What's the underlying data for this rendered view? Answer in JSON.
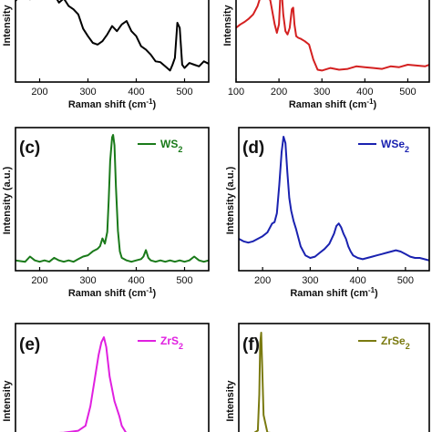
{
  "chart_data": [
    {
      "type": "line",
      "panel_label": "",
      "legend": "",
      "xlabel": "Raman shift (cm⁻¹)",
      "ylabel": "Intensity",
      "xlim": [
        150,
        550
      ],
      "xticks": [
        200,
        300,
        400,
        500
      ],
      "color": "#000000",
      "series": [
        {
          "x": [
            150,
            160,
            170,
            180,
            190,
            200,
            210,
            215,
            220,
            230,
            240,
            250,
            260,
            270,
            280,
            290,
            300,
            310,
            320,
            330,
            340,
            350,
            360,
            370,
            380,
            390,
            400,
            410,
            420,
            430,
            440,
            450,
            460,
            470,
            475,
            480,
            485,
            490,
            495,
            500,
            510,
            520,
            530,
            540,
            550
          ],
          "y": [
            0.88,
            0.95,
            1.02,
            0.9,
            0.97,
            1.05,
            0.98,
            1.01,
            0.92,
            0.96,
            0.86,
            0.91,
            0.82,
            0.78,
            0.72,
            0.55,
            0.46,
            0.38,
            0.36,
            0.4,
            0.48,
            0.58,
            0.52,
            0.6,
            0.64,
            0.52,
            0.46,
            0.34,
            0.3,
            0.24,
            0.16,
            0.15,
            0.1,
            0.05,
            0.12,
            0.2,
            0.62,
            0.56,
            0.12,
            0.08,
            0.14,
            0.12,
            0.1,
            0.16,
            0.13
          ]
        }
      ]
    },
    {
      "type": "line",
      "panel_label": "",
      "legend": "",
      "xlabel": "Raman shift (cm⁻¹)",
      "ylabel": "Intensity",
      "xlim": [
        100,
        550
      ],
      "xticks": [
        100,
        200,
        300,
        400,
        500
      ],
      "color": "#d42020",
      "series": [
        {
          "x": [
            100,
            110,
            120,
            130,
            140,
            150,
            160,
            170,
            180,
            190,
            195,
            200,
            203,
            206,
            210,
            215,
            220,
            225,
            230,
            233,
            236,
            240,
            245,
            250,
            260,
            270,
            280,
            290,
            300,
            320,
            340,
            360,
            380,
            400,
            420,
            440,
            460,
            480,
            500,
            520,
            540,
            550
          ],
          "y": [
            0.56,
            0.6,
            0.63,
            0.67,
            0.72,
            0.82,
            0.98,
            1.02,
            0.88,
            0.6,
            0.5,
            0.6,
            0.92,
            1.02,
            0.72,
            0.52,
            0.48,
            0.56,
            0.78,
            0.8,
            0.6,
            0.46,
            0.44,
            0.43,
            0.4,
            0.36,
            0.18,
            0.06,
            0.05,
            0.08,
            0.06,
            0.07,
            0.1,
            0.09,
            0.08,
            0.07,
            0.1,
            0.09,
            0.12,
            0.11,
            0.1,
            0.12
          ]
        }
      ]
    },
    {
      "type": "line",
      "panel_label": "(c)",
      "legend": "WS₂",
      "xlabel": "Raman shift (cm⁻¹)",
      "ylabel": "Intensity (a.u.)",
      "xlim": [
        150,
        550
      ],
      "xticks": [
        200,
        300,
        400,
        500
      ],
      "color": "#1a7a1a",
      "series": [
        {
          "x": [
            150,
            170,
            180,
            190,
            200,
            210,
            220,
            230,
            240,
            250,
            260,
            270,
            280,
            290,
            300,
            310,
            320,
            325,
            330,
            335,
            340,
            343,
            346,
            350,
            352,
            355,
            358,
            362,
            366,
            370,
            380,
            390,
            400,
            410,
            415,
            420,
            425,
            430,
            440,
            450,
            460,
            470,
            480,
            490,
            500,
            510,
            520,
            530,
            540,
            550
          ],
          "y": [
            0.03,
            0.02,
            0.06,
            0.03,
            0.02,
            0.03,
            0.02,
            0.05,
            0.03,
            0.02,
            0.03,
            0.02,
            0.04,
            0.06,
            0.07,
            0.1,
            0.12,
            0.14,
            0.2,
            0.16,
            0.25,
            0.5,
            0.8,
            0.98,
            1.0,
            0.92,
            0.6,
            0.26,
            0.1,
            0.05,
            0.03,
            0.02,
            0.03,
            0.04,
            0.06,
            0.11,
            0.05,
            0.03,
            0.02,
            0.03,
            0.02,
            0.03,
            0.02,
            0.03,
            0.02,
            0.03,
            0.06,
            0.03,
            0.02,
            0.03
          ]
        }
      ]
    },
    {
      "type": "line",
      "panel_label": "(d)",
      "legend": "WSe₂",
      "xlabel": "Raman shift (cm⁻¹)",
      "ylabel": "Intensity (a.u.)",
      "xlim": [
        150,
        550
      ],
      "xticks": [
        200,
        300,
        400,
        500
      ],
      "color": "#1a22b0",
      "series": [
        {
          "x": [
            150,
            160,
            170,
            180,
            190,
            200,
            210,
            220,
            225,
            230,
            235,
            240,
            244,
            248,
            252,
            256,
            260,
            265,
            270,
            280,
            290,
            300,
            310,
            320,
            330,
            340,
            350,
            355,
            360,
            365,
            370,
            375,
            380,
            385,
            390,
            400,
            410,
            420,
            430,
            440,
            450,
            460,
            470,
            480,
            490,
            500,
            510,
            520,
            530,
            540,
            550
          ],
          "y": [
            0.2,
            0.18,
            0.17,
            0.18,
            0.2,
            0.22,
            0.25,
            0.32,
            0.33,
            0.4,
            0.62,
            0.88,
            1.0,
            0.95,
            0.72,
            0.52,
            0.42,
            0.34,
            0.28,
            0.14,
            0.07,
            0.05,
            0.06,
            0.09,
            0.12,
            0.16,
            0.24,
            0.3,
            0.32,
            0.29,
            0.24,
            0.2,
            0.14,
            0.1,
            0.07,
            0.05,
            0.04,
            0.05,
            0.06,
            0.07,
            0.08,
            0.09,
            0.1,
            0.11,
            0.1,
            0.08,
            0.06,
            0.05,
            0.05,
            0.04,
            0.03
          ]
        }
      ]
    },
    {
      "type": "line",
      "panel_label": "(e)",
      "legend": "ZrS₂",
      "ylabel": "Intensity",
      "xlim": [
        150,
        550
      ],
      "color": "#e020e0",
      "series": [
        {
          "x": [
            150,
            200,
            250,
            280,
            295,
            305,
            315,
            322,
            328,
            333,
            338,
            345,
            355,
            365,
            370,
            380
          ],
          "y": [
            0.02,
            0.02,
            0.03,
            0.05,
            0.1,
            0.3,
            0.6,
            0.82,
            0.95,
            1.0,
            0.9,
            0.6,
            0.35,
            0.2,
            0.1,
            0.02
          ]
        }
      ]
    },
    {
      "type": "line",
      "panel_label": "(f)",
      "legend": "ZrSe₂",
      "ylabel": "Intensity",
      "xlim": [
        150,
        550
      ],
      "color": "#7a7a10",
      "series": [
        {
          "x": [
            150,
            180,
            190,
            193,
            195,
            197,
            199,
            202,
            210,
            230
          ],
          "y": [
            0.02,
            0.02,
            0.05,
            0.4,
            0.9,
            1.0,
            0.7,
            0.2,
            0.03,
            0.02
          ]
        }
      ]
    }
  ]
}
